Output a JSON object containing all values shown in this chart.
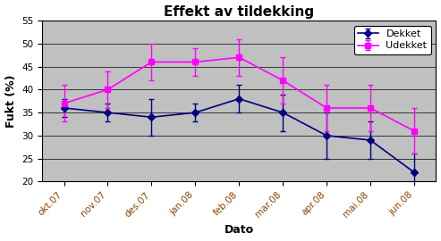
{
  "title": "Effekt av tildekking",
  "xlabel": "Dato",
  "ylabel": "Fukt (%)",
  "categories": [
    "okt.07",
    "nov.07",
    "des.07",
    "jan.08",
    "feb.08",
    "mar.08",
    "apr.08",
    "mai.08",
    "jun.08"
  ],
  "dekket_y": [
    36,
    35,
    34,
    35,
    38,
    35,
    30,
    29,
    22
  ],
  "dekket_err": [
    2,
    2,
    4,
    2,
    3,
    4,
    5,
    4,
    4
  ],
  "udekket_y": [
    37,
    40,
    46,
    46,
    47,
    42,
    36,
    36,
    31
  ],
  "udekket_err": [
    4,
    4,
    4,
    3,
    4,
    5,
    5,
    5,
    5
  ],
  "dekket_color": "#000080",
  "udekket_color": "#FF00FF",
  "bg_color": "#C0C0C0",
  "ylim": [
    20,
    55
  ],
  "yticks": [
    20,
    25,
    30,
    35,
    40,
    45,
    50,
    55
  ],
  "title_fontsize": 11,
  "axis_label_fontsize": 9,
  "tick_fontsize": 7.5,
  "legend_fontsize": 8,
  "xtick_color": "#8B4500",
  "legend_labels": [
    "Dekket",
    "Udekket"
  ]
}
